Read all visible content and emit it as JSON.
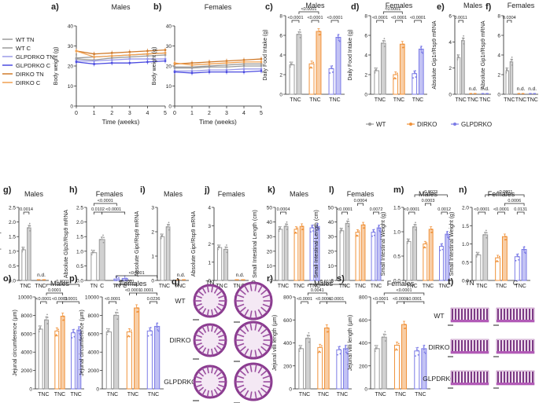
{
  "figure": {
    "group_colors": {
      "WT": "#9a9a9a",
      "DIRKO": "#f0923a",
      "GLPDRKO": "#7b7be6"
    },
    "shared_legend": [
      "WT",
      "DIRKO",
      "GLPDRKO"
    ],
    "weight_legend": [
      "WT TN",
      "WT C",
      "GLPDRKO TN",
      "GLPDRKO C",
      "DIRKO TN",
      "DIRKO C"
    ],
    "histology": {
      "q": {
        "label": "q)",
        "cols": [
          "TN",
          "C"
        ],
        "rows": [
          "WT",
          "DIRKO",
          "GLPDRKO"
        ]
      },
      "t": {
        "label": "t)",
        "cols": [
          "TN",
          "C"
        ],
        "rows": [
          "WT",
          "DIRKO",
          "GLPDRKO"
        ]
      }
    }
  },
  "chart_data": [
    {
      "id": "a",
      "label": "a)",
      "type": "line",
      "title": "Males",
      "xlabel": "Time (weeks)",
      "ylabel": "Body weight (g)",
      "xlim": [
        0,
        5
      ],
      "ylim": [
        0,
        40
      ],
      "xticks": [
        0,
        1,
        2,
        3,
        4,
        5
      ],
      "yticks": [
        0,
        10,
        20,
        30,
        40
      ],
      "x": [
        0,
        1,
        2,
        3,
        4,
        5
      ],
      "series": [
        {
          "name": "WT TN",
          "color": "#9a9a9a",
          "values": [
            23.5,
            23.0,
            24.0,
            24.5,
            25.0,
            25.5
          ]
        },
        {
          "name": "WT C",
          "color": "#9a9a9a",
          "values": [
            24.0,
            24.5,
            25.0,
            25.5,
            26.0,
            26.5
          ]
        },
        {
          "name": "GLPDRKO TN",
          "color": "#9a9ae8",
          "values": [
            22.5,
            22.5,
            23.0,
            23.5,
            23.5,
            23.5
          ]
        },
        {
          "name": "GLPDRKO C",
          "color": "#4a4ae0",
          "values": [
            22.0,
            21.0,
            21.5,
            21.5,
            22.0,
            22.5
          ]
        },
        {
          "name": "DIRKO TN",
          "color": "#d07a2a",
          "values": [
            27.5,
            26.0,
            26.5,
            27.0,
            27.5,
            28.0
          ]
        },
        {
          "name": "DIRKO C",
          "color": "#f0a050",
          "values": [
            27.5,
            24.5,
            25.0,
            25.5,
            26.0,
            26.5
          ]
        }
      ]
    },
    {
      "id": "b",
      "label": "b)",
      "type": "line",
      "title": "Females",
      "xlabel": "Time (weeks)",
      "ylabel": "Body weight (g)",
      "xlim": [
        0,
        5
      ],
      "ylim": [
        0,
        40
      ],
      "xticks": [
        0,
        1,
        2,
        3,
        4,
        5
      ],
      "yticks": [
        0,
        10,
        20,
        30,
        40
      ],
      "x": [
        0,
        1,
        2,
        3,
        4,
        5
      ],
      "series": [
        {
          "name": "WT TN",
          "color": "#9a9a9a",
          "values": [
            19.0,
            19.0,
            19.5,
            19.5,
            20.0,
            20.0
          ]
        },
        {
          "name": "WT C",
          "color": "#9a9a9a",
          "values": [
            19.5,
            19.5,
            20.0,
            20.5,
            21.0,
            21.0
          ]
        },
        {
          "name": "GLPDRKO TN",
          "color": "#9a9ae8",
          "values": [
            17.5,
            17.5,
            18.0,
            18.0,
            18.5,
            18.5
          ]
        },
        {
          "name": "GLPDRKO C",
          "color": "#4a4ae0",
          "values": [
            17.0,
            16.5,
            17.0,
            17.0,
            17.0,
            17.5
          ]
        },
        {
          "name": "DIRKO TN",
          "color": "#d07a2a",
          "values": [
            21.0,
            21.5,
            22.0,
            22.5,
            23.0,
            23.5
          ]
        },
        {
          "name": "DIRKO C",
          "color": "#f0a050",
          "values": [
            21.5,
            20.5,
            21.0,
            21.5,
            22.0,
            22.0
          ]
        }
      ]
    },
    {
      "id": "c",
      "label": "c)",
      "type": "bar",
      "title": "Males",
      "ylabel": "Daily Food Intake (g)",
      "ylim": [
        0,
        8
      ],
      "yticks": [
        0,
        2,
        4,
        6,
        8
      ],
      "categories": [
        "T",
        "N",
        "C",
        "T",
        "N",
        "C",
        "T",
        "N",
        "C"
      ],
      "groups": [
        "WT",
        "DIRKO",
        "GLPDRKO"
      ],
      "values": [
        [
          3.0,
          6.1
        ],
        [
          3.1,
          6.4
        ],
        [
          2.6,
          5.8
        ]
      ],
      "comparisons": [
        {
          "a": 0,
          "b": 1,
          "text": "<0.0001",
          "level": 0
        },
        {
          "a": 2,
          "b": 3,
          "text": "<0.0001",
          "level": 0
        },
        {
          "a": 4,
          "b": 5,
          "text": "<0.0001",
          "level": 0
        },
        {
          "a": 1,
          "b": 3,
          "text": "<0.0001",
          "level": 1
        }
      ]
    },
    {
      "id": "d",
      "label": "d)",
      "type": "bar",
      "title": "Females",
      "ylabel": "Daily Food Intake (g)",
      "ylim": [
        0,
        8
      ],
      "yticks": [
        0,
        2,
        4,
        6,
        8
      ],
      "groups": [
        "WT",
        "DIRKO",
        "GLPDRKO"
      ],
      "values": [
        [
          2.4,
          5.2
        ],
        [
          2.0,
          5.1
        ],
        [
          2.1,
          4.6
        ]
      ],
      "comparisons": [
        {
          "a": 0,
          "b": 1,
          "text": "<0.0001",
          "level": 0
        },
        {
          "a": 2,
          "b": 3,
          "text": "<0.0001",
          "level": 0
        },
        {
          "a": 4,
          "b": 5,
          "text": "<0.0001",
          "level": 0
        },
        {
          "a": 1,
          "b": 3,
          "text": "<0.0001",
          "level": 1
        }
      ]
    },
    {
      "id": "e",
      "label": "e)",
      "type": "bar",
      "title": "Males",
      "ylabel": "Absolute Gip1r/Rsp9 mRNA",
      "ylim": [
        0,
        6
      ],
      "yticks": [
        0,
        2,
        4,
        6
      ],
      "groups": [
        "WT",
        "DIRKO",
        "GLPDRKO"
      ],
      "values": [
        [
          2.8,
          4.1
        ],
        [
          null,
          null
        ],
        [
          null,
          null
        ]
      ],
      "nd": [
        false,
        true,
        true
      ],
      "nd_label": "n.d.",
      "comparisons": [
        {
          "a": 0,
          "b": 1,
          "text": "0.0011",
          "level": 0
        }
      ]
    },
    {
      "id": "f",
      "label": "f)",
      "type": "bar",
      "title": "Females",
      "ylabel": "Absolute Gip1r/Rsp9 mRNA",
      "ylim": [
        0,
        8
      ],
      "yticks": [
        0,
        2,
        4,
        6,
        8
      ],
      "groups": [
        "WT",
        "DIRKO",
        "GLPDRKO"
      ],
      "values": [
        [
          2.4,
          3.3
        ],
        [
          null,
          null
        ],
        [
          null,
          null
        ]
      ],
      "nd": [
        false,
        true,
        true
      ],
      "nd_label": "n.d.",
      "comparisons": [
        {
          "a": 0,
          "b": 1,
          "text": "0.0304",
          "level": 0
        }
      ]
    },
    {
      "id": "g",
      "label": "g)",
      "type": "bar",
      "title": "Males",
      "ylabel": "Absolute Glp2r/Rsp9 mRNA",
      "ylim": [
        0,
        2.5
      ],
      "yticks": [
        0.0,
        0.5,
        1.0,
        1.5,
        2.0,
        2.5
      ],
      "groups": [
        "WT",
        "DIRKO"
      ],
      "xticklabels": [
        "TN",
        "C"
      ],
      "values": [
        [
          1.05,
          1.8
        ],
        [
          null,
          null
        ]
      ],
      "nd": [
        false,
        true
      ],
      "nd_label": "n.d.",
      "comparisons": [
        {
          "a": 0,
          "b": 1,
          "text": "0.0014",
          "level": 0
        }
      ]
    },
    {
      "id": "h",
      "label": "h)",
      "type": "bar",
      "title": "Females",
      "ylabel": "Absolute Glp2r/Rsp9 mRNA",
      "ylim": [
        0,
        2.5
      ],
      "yticks": [
        0.0,
        0.5,
        1.0,
        1.5,
        2.0,
        2.5
      ],
      "groups": [
        "WT",
        "GLPDRKO"
      ],
      "xticklabels": [
        "TN",
        "C"
      ],
      "values": [
        [
          0.95,
          1.4
        ],
        [
          0.05,
          0.07
        ]
      ],
      "comparisons": [
        {
          "a": 0,
          "b": 1,
          "text": "0.0102",
          "level": 0
        },
        {
          "a": 1,
          "b": 3,
          "text": "<0.0001",
          "level": 0
        },
        {
          "a": 0,
          "b": 2,
          "text": "<0.0001",
          "level": 1
        }
      ]
    },
    {
      "id": "i",
      "label": "i)",
      "type": "bar",
      "title": "Males",
      "ylabel": "Absolute Gipr/Rsp9 mRNA",
      "ylim": [
        0,
        3
      ],
      "yticks": [
        0,
        1,
        2,
        3
      ],
      "groups": [
        "WT",
        "DIRKO"
      ],
      "xticklabels": [
        "TN",
        "C"
      ],
      "values": [
        [
          1.8,
          2.2
        ],
        [
          null,
          null
        ]
      ],
      "nd": [
        false,
        true
      ],
      "nd_label": "n.d."
    },
    {
      "id": "j",
      "label": "j)",
      "type": "bar",
      "title": "Females",
      "ylabel": "Absolute Gipr/Rsp9 mRNA",
      "ylim": [
        0,
        4
      ],
      "yticks": [
        0,
        1,
        2,
        3,
        4
      ],
      "groups": [
        "WT",
        "DIRKO"
      ],
      "xticklabels": [
        "TN",
        "C"
      ],
      "values": [
        [
          1.8,
          1.7
        ],
        [
          null,
          null
        ]
      ],
      "nd": [
        false,
        true
      ],
      "nd_label": "n.d."
    },
    {
      "id": "k",
      "label": "k)",
      "type": "bar",
      "title": "Males",
      "ylabel": "Small Intestinal Length (cm)",
      "ylim": [
        0,
        50
      ],
      "yticks": [
        0,
        10,
        20,
        30,
        40,
        50
      ],
      "groups": [
        "WT",
        "DIRKO",
        "GLPDRKO"
      ],
      "values": [
        [
          35,
          37
        ],
        [
          35,
          37
        ],
        [
          36,
          37
        ]
      ],
      "comparisons": [
        {
          "a": 0,
          "b": 1,
          "text": "0.0004",
          "level": 0
        }
      ]
    },
    {
      "id": "l",
      "label": "l)",
      "type": "bar",
      "title": "Females",
      "ylabel": "Small Intestinal Length (cm)",
      "ylim": [
        0,
        50
      ],
      "yticks": [
        0,
        10,
        20,
        30,
        40,
        50
      ],
      "groups": [
        "WT",
        "DIRKO",
        "GLPDRKO"
      ],
      "values": [
        [
          34,
          39
        ],
        [
          33,
          38
        ],
        [
          33,
          36
        ]
      ],
      "comparisons": [
        {
          "a": 0,
          "b": 1,
          "text": "<0.0001",
          "level": 0
        },
        {
          "a": 2,
          "b": 3,
          "text": "0.0004",
          "level": 1
        },
        {
          "a": 4,
          "b": 5,
          "text": "0.0072",
          "level": 0
        }
      ]
    },
    {
      "id": "m",
      "label": "m)",
      "type": "bar",
      "title": "Males",
      "ylabel": "Small Intestinal Weight (g)",
      "ylim": [
        0,
        1.5
      ],
      "yticks": [
        0.0,
        0.5,
        1.0,
        1.5
      ],
      "groups": [
        "WT",
        "DIRKO",
        "GLPDRKO"
      ],
      "values": [
        [
          0.8,
          1.1
        ],
        [
          0.75,
          1.05
        ],
        [
          0.7,
          0.95
        ]
      ],
      "comparisons": [
        {
          "a": 0,
          "b": 1,
          "text": "<0.0001",
          "level": 0
        },
        {
          "a": 2,
          "b": 3,
          "text": "0.0003",
          "level": 1
        },
        {
          "a": 4,
          "b": 5,
          "text": "0.0012",
          "level": 0
        },
        {
          "a": 1,
          "b": 5,
          "text": "0.0023",
          "level": 2
        }
      ]
    },
    {
      "id": "n",
      "label": "n)",
      "type": "bar",
      "title": "Females",
      "ylabel": "Small Intestinal Weight (g)",
      "ylim": [
        0,
        2
      ],
      "yticks": [
        0.0,
        0.5,
        1.0,
        1.5,
        2.0
      ],
      "groups": [
        "WT",
        "DIRKO",
        "GLPDRKO"
      ],
      "values": [
        [
          0.7,
          1.25
        ],
        [
          0.62,
          1.2
        ],
        [
          0.65,
          0.85
        ]
      ],
      "comparisons": [
        {
          "a": 0,
          "b": 1,
          "text": "<0.0001",
          "level": 0
        },
        {
          "a": 2,
          "b": 3,
          "text": "<0.0001",
          "level": 0
        },
        {
          "a": 4,
          "b": 5,
          "text": "0.0131",
          "level": 0
        },
        {
          "a": 3,
          "b": 5,
          "text": "0.0006",
          "level": 1
        },
        {
          "a": 1,
          "b": 5,
          "text": "<0.0001",
          "level": 2
        }
      ]
    },
    {
      "id": "o",
      "label": "o)",
      "type": "bar",
      "title": "Males",
      "ylabel": "Jejunal circumference (µm)",
      "ylim": [
        0,
        10000
      ],
      "yticks": [
        0,
        2000,
        4000,
        6000,
        8000,
        10000
      ],
      "groups": [
        "WT",
        "DIRKO",
        "GLPDRKO"
      ],
      "values": [
        [
          6500,
          7500
        ],
        [
          6300,
          7900
        ],
        [
          6100,
          6400
        ]
      ],
      "comparisons": [
        {
          "a": 0,
          "b": 1,
          "text": "<0.0001",
          "level": 0
        },
        {
          "a": 2,
          "b": 3,
          "text": "<0.0001",
          "level": 0
        },
        {
          "a": 3,
          "b": 5,
          "text": "0.0001",
          "level": 0
        },
        {
          "a": 1,
          "b": 3,
          "text": "0.0001",
          "level": 1
        },
        {
          "a": 1,
          "b": 5,
          "text": "0.0001",
          "level": 2
        }
      ]
    },
    {
      "id": "p",
      "label": "p)",
      "type": "bar",
      "title": "Females",
      "ylabel": "Jejunal circumference (µm)",
      "ylim": [
        0,
        10000
      ],
      "yticks": [
        0,
        2000,
        4000,
        6000,
        8000,
        10000
      ],
      "groups": [
        "WT",
        "DIRKO",
        "GLPDRKO"
      ],
      "values": [
        [
          6200,
          8000
        ],
        [
          6200,
          8800
        ],
        [
          6300,
          6800
        ]
      ],
      "comparisons": [
        {
          "a": 0,
          "b": 1,
          "text": "<0.0001",
          "level": 0
        },
        {
          "a": 2,
          "b": 3,
          "text": "<0.0001",
          "level": 1
        },
        {
          "a": 4,
          "b": 5,
          "text": "0.0236",
          "level": 0
        },
        {
          "a": 3,
          "b": 5,
          "text": "0.0001",
          "level": 1
        },
        {
          "a": 1,
          "b": 3,
          "text": "<0.0001",
          "level": 2
        },
        {
          "a": 1,
          "b": 5,
          "text": "<0.0001",
          "level": 3
        }
      ]
    },
    {
      "id": "r",
      "label": "r)",
      "type": "bar",
      "title": "Males",
      "ylabel": "Jejunal villi length (µm)",
      "ylim": [
        0,
        800
      ],
      "yticks": [
        0,
        200,
        400,
        600,
        800
      ],
      "groups": [
        "WT",
        "DIRKO",
        "GLPDRKO"
      ],
      "values": [
        [
          350,
          440
        ],
        [
          360,
          530
        ],
        [
          340,
          350
        ]
      ],
      "comparisons": [
        {
          "a": 0,
          "b": 1,
          "text": "<0.0001",
          "level": 0
        },
        {
          "a": 2,
          "b": 3,
          "text": "<0.0001",
          "level": 0
        },
        {
          "a": 3,
          "b": 5,
          "text": "<0.0001",
          "level": 0
        },
        {
          "a": 1,
          "b": 3,
          "text": "0.0041",
          "level": 1
        },
        {
          "a": 1,
          "b": 5,
          "text": "0.0018",
          "level": 2
        }
      ]
    },
    {
      "id": "s",
      "label": "s)",
      "type": "bar",
      "title": "Females",
      "ylabel": "Jejunal villi length (µm)",
      "ylim": [
        0,
        800
      ],
      "yticks": [
        0,
        200,
        400,
        600,
        800
      ],
      "groups": [
        "WT",
        "DIRKO",
        "GLPDRKO"
      ],
      "values": [
        [
          350,
          450
        ],
        [
          380,
          560
        ],
        [
          330,
          350
        ]
      ],
      "comparisons": [
        {
          "a": 0,
          "b": 1,
          "text": "<0.0001",
          "level": 0
        },
        {
          "a": 2,
          "b": 3,
          "text": "<0.0001",
          "level": 0
        },
        {
          "a": 3,
          "b": 5,
          "text": "<0.0001",
          "level": 0
        },
        {
          "a": 1,
          "b": 5,
          "text": "<0.0001",
          "level": 1
        }
      ]
    }
  ]
}
